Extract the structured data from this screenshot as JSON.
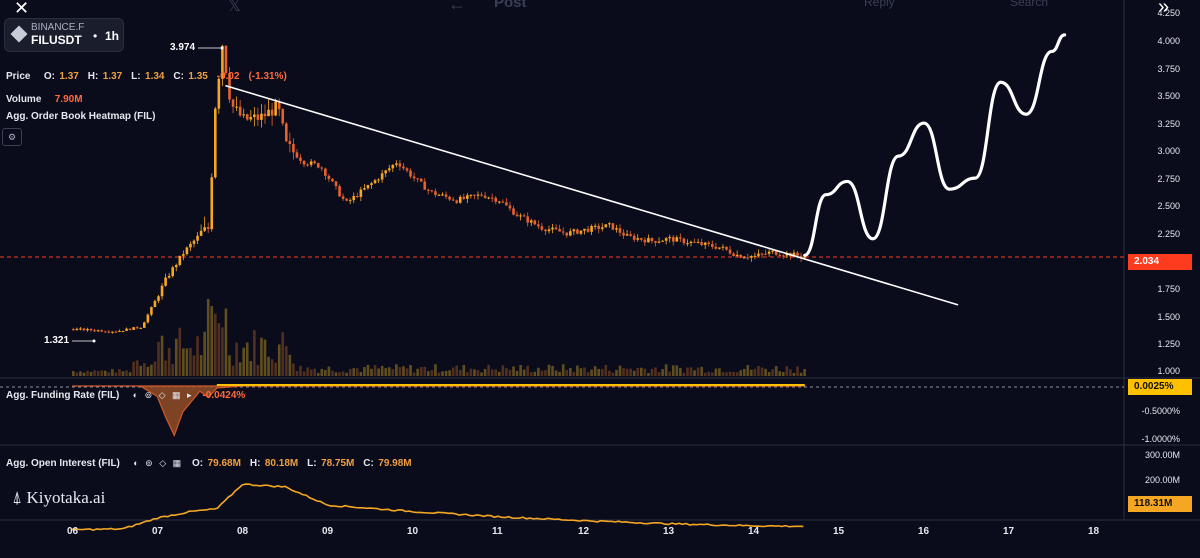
{
  "top_bar": {
    "close_glyph": "✕",
    "x_logo": "𝕏",
    "back_glyph": "←",
    "post_label": "Post",
    "reply_label": "Reply",
    "search_label": "Search",
    "expand_glyph": "»"
  },
  "symbol": {
    "exchange": "BINANCE.F",
    "ticker": "FILUSDT",
    "separator": "•",
    "timeframe": "1h"
  },
  "legend": {
    "price_label": "Price",
    "o_label": "O:",
    "o_value": "1.37",
    "h_label": "H:",
    "h_value": "1.37",
    "l_label": "L:",
    "l_value": "1.34",
    "c_label": "C:",
    "c_value": "1.35",
    "change": "-0.02",
    "change_pct": "(-1.31%)",
    "volume_label": "Volume",
    "volume_value": "7.90M",
    "heatmap_label": "Agg. Order Book Heatmap (FIL)"
  },
  "funding_panel": {
    "title": "Agg. Funding Rate (FIL)",
    "value": "-0.0424%",
    "icons": "◐ ⊚ ◇ ▦ ▸",
    "current_tag": "0.0025%",
    "axis": [
      "-0.5000%",
      "-1.0000%"
    ]
  },
  "oi_panel": {
    "title": "Agg. Open Interest (FIL)",
    "icons": "◐ ⊚ ◇ ▦",
    "o_label": "O:",
    "o_value": "79.68M",
    "h_label": "H:",
    "h_value": "80.18M",
    "l_label": "L:",
    "l_value": "78.75M",
    "c_label": "C:",
    "c_value": "79.98M",
    "axis": [
      "300.00M",
      "200.00M"
    ],
    "current_tag": "118.31M"
  },
  "price_axis": [
    "4.250",
    "4.000",
    "3.750",
    "3.500",
    "3.250",
    "3.000",
    "2.750",
    "2.500",
    "2.250",
    "1.750",
    "1.500",
    "1.250",
    "1.000"
  ],
  "current_price_tag": "2.034",
  "annotations": {
    "high": "3.974",
    "low": "1.321"
  },
  "x_axis": [
    "06",
    "07",
    "08",
    "09",
    "10",
    "11",
    "12",
    "13",
    "14",
    "15",
    "16",
    "17",
    "18"
  ],
  "branding": {
    "logo_text": "Kiyotaka.ai"
  },
  "colors": {
    "background": "#0a0c1c",
    "candle_up": "#f5a623",
    "candle_down": "#e8612c",
    "trendline": "#ffffff",
    "price_tag": "#ff3b1f",
    "funding_tag": "#ffc000",
    "oi_tag": "#f5a623"
  },
  "chart_data": {
    "type": "line",
    "ylabel": "",
    "xlabel": "",
    "y_ticks": [
      1.0,
      1.25,
      1.5,
      1.75,
      2.25,
      2.5,
      2.75,
      3.0,
      3.25,
      3.5,
      3.75,
      4.0,
      4.25
    ],
    "ylim": [
      1.0,
      4.25
    ],
    "series": [
      {
        "x": [
          6.0,
          6.5,
          6.8,
          6.95,
          7.1,
          7.3,
          7.5,
          7.6,
          7.65,
          7.75,
          7.85,
          8.0,
          8.2,
          8.4,
          8.5,
          8.7,
          8.9,
          9.0,
          9.2,
          9.5,
          9.8,
          10.0,
          10.2,
          10.5,
          10.8,
          11.0,
          11.2,
          11.5,
          11.8,
          12.0,
          12.3,
          12.5,
          12.8,
          13.0,
          13.3,
          13.6,
          13.8,
          14.0,
          14.2,
          14.4,
          14.6
        ],
        "y": [
          1.38,
          1.36,
          1.4,
          1.62,
          1.85,
          2.08,
          2.25,
          2.3,
          3.3,
          3.97,
          3.42,
          3.28,
          3.3,
          3.4,
          3.05,
          2.9,
          2.86,
          2.75,
          2.52,
          2.7,
          2.9,
          2.75,
          2.62,
          2.55,
          2.6,
          2.55,
          2.42,
          2.3,
          2.25,
          2.28,
          2.32,
          2.22,
          2.18,
          2.2,
          2.16,
          2.12,
          2.05,
          2.04,
          2.08,
          2.06,
          2.034
        ]
      },
      {
        "x": [
          14.6,
          14.85,
          15.1,
          15.4,
          15.7,
          16.0,
          16.3,
          16.6,
          16.9,
          17.2,
          17.5,
          17.65
        ],
        "y": [
          2.05,
          2.6,
          2.72,
          2.2,
          2.95,
          3.25,
          2.65,
          2.75,
          3.62,
          3.33,
          3.9,
          4.05
        ]
      },
      {
        "x": [
          7.8,
          16.4
        ],
        "y": [
          3.59,
          1.6
        ]
      }
    ],
    "funding_rate": {
      "x": [
        6.0,
        6.8,
        7.0,
        7.1,
        7.2,
        7.3,
        7.5,
        7.6,
        7.7,
        8.0,
        14.6
      ],
      "y": [
        0.0,
        0.0,
        -0.2,
        -0.6,
        -0.95,
        -0.5,
        -0.1,
        -0.22,
        -0.04,
        0.0,
        0.0025
      ]
    },
    "open_interest": {
      "x": [
        6.0,
        6.6,
        7.0,
        7.4,
        7.7,
        8.0,
        8.5,
        9.0,
        10.0,
        11.0,
        12.0,
        13.0,
        14.0,
        14.6
      ],
      "y": [
        105,
        108,
        150,
        175,
        185,
        280,
        270,
        200,
        175,
        155,
        140,
        128,
        120,
        118
      ]
    }
  }
}
